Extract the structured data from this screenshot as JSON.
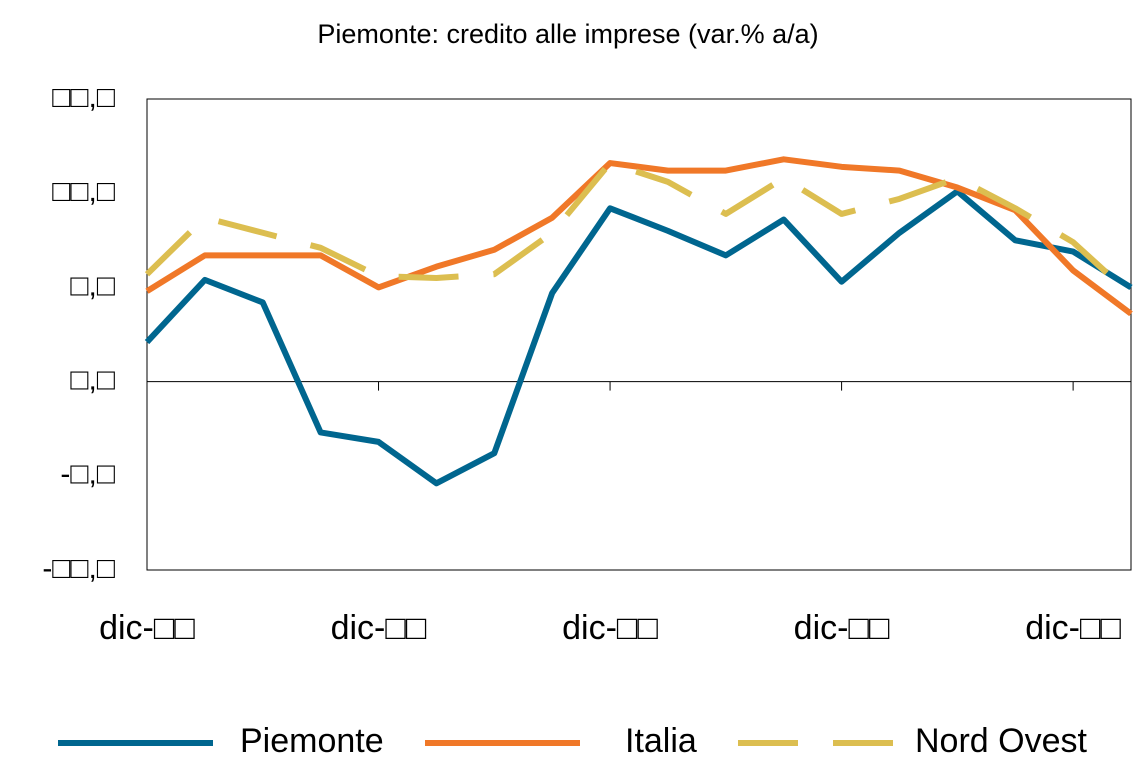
{
  "chart_data": {
    "type": "line",
    "title": "Piemonte: credito alle imprese (var.% a/a)",
    "categories": [
      "dic-□□",
      null,
      null,
      null,
      "dic-□□",
      null,
      null,
      null,
      "dic-□□",
      null,
      null,
      null,
      "dic-□□",
      null,
      null,
      null,
      "dic-□□",
      null
    ],
    "series": [
      {
        "name": "Piemonte",
        "color": "#00668f",
        "dash": "solid",
        "values": [
          2.1,
          5.4,
          4.2,
          -2.7,
          -3.2,
          -5.4,
          -3.8,
          4.7,
          9.2,
          8.0,
          6.7,
          8.6,
          5.3,
          7.9,
          10.1,
          7.5,
          6.9,
          5.0
        ]
      },
      {
        "name": "Italia",
        "color": "#f07828",
        "dash": "solid",
        "values": [
          4.8,
          6.7,
          6.7,
          6.7,
          5.0,
          6.1,
          7.0,
          8.7,
          11.6,
          11.2,
          11.2,
          11.8,
          11.4,
          11.2,
          10.3,
          9.1,
          5.9,
          3.6
        ]
      },
      {
        "name": "Nord Ovest",
        "color": "#dcbe50",
        "dash": "dashed",
        "values": [
          5.7,
          8.7,
          7.9,
          7.1,
          5.6,
          5.5,
          5.7,
          7.9,
          11.6,
          10.6,
          8.9,
          10.8,
          8.9,
          9.7,
          10.8,
          9.2,
          7.4,
          4.6
        ]
      }
    ],
    "ylim": [
      -10,
      15
    ],
    "yticks": [
      {
        "value": -10,
        "label": "-□□,□"
      },
      {
        "value": -5,
        "label": "-□,□"
      },
      {
        "value": 0,
        "label": "□,□"
      },
      {
        "value": 5,
        "label": "□,□"
      },
      {
        "value": 10,
        "label": "□□,□"
      },
      {
        "value": 15,
        "label": "□□,□"
      }
    ],
    "legend": "bottom"
  }
}
